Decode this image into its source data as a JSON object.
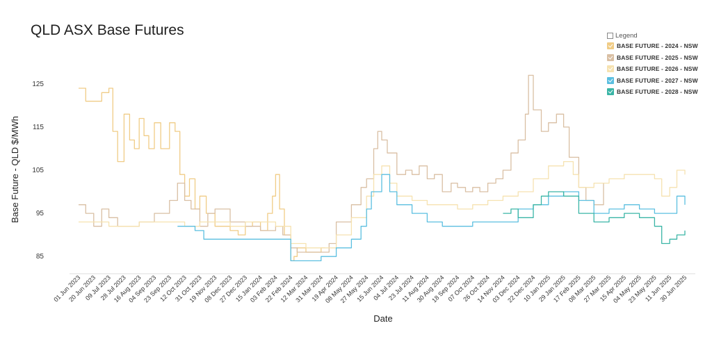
{
  "chart_data": {
    "type": "line",
    "title": "QLD ASX Base Futures",
    "xlabel": "Date",
    "ylabel": "Base Future - QLD $/MWh",
    "ylim": [
      81,
      129
    ],
    "yticks": [
      85,
      95,
      105,
      115,
      125
    ],
    "xlim": [
      "2023-06-01",
      "2025-06-30"
    ],
    "xticks": [
      "01 Jun 2023",
      "20 Jun 2023",
      "09 Jul 2023",
      "28 Jul 2023",
      "16 Aug 2023",
      "04 Sep 2023",
      "23 Sep 2023",
      "12 Oct 2023",
      "31 Oct 2023",
      "19 Nov 2023",
      "08 Dec 2023",
      "27 Dec 2023",
      "15 Jan 2024",
      "03 Feb 2024",
      "22 Feb 2024",
      "12 Mar 2024",
      "31 Mar 2024",
      "19 Apr 2024",
      "08 May 2024",
      "27 May 2024",
      "15 Jun 2024",
      "04 Jul 2024",
      "23 Jul 2024",
      "11 Aug 2024",
      "30 Aug 2024",
      "18 Sep 2024",
      "07 Oct 2024",
      "26 Oct 2024",
      "14 Nov 2024",
      "03 Dec 2024",
      "22 Dec 2024",
      "10 Jan 2025",
      "29 Jan 2025",
      "17 Feb 2025",
      "08 Mar 2025",
      "27 Mar 2025",
      "15 Apr 2025",
      "04 May 2025",
      "23 May 2025",
      "11 Jun 2025",
      "30 Jun 2025"
    ],
    "grid": false,
    "legend": {
      "title": "Legend",
      "position": "top-right"
    },
    "series": [
      {
        "name": "BASE FUTURE - 2024 - NSW",
        "color": "#f0cc86",
        "x": [
          "2023-06-01",
          "2023-06-10",
          "2023-06-20",
          "2023-06-30",
          "2023-07-09",
          "2023-07-14",
          "2023-07-20",
          "2023-07-28",
          "2023-08-04",
          "2023-08-10",
          "2023-08-16",
          "2023-08-22",
          "2023-08-28",
          "2023-09-04",
          "2023-09-12",
          "2023-09-23",
          "2023-09-30",
          "2023-10-06",
          "2023-10-12",
          "2023-10-18",
          "2023-10-25",
          "2023-10-31",
          "2023-11-08",
          "2023-11-19",
          "2023-11-28",
          "2023-12-08",
          "2023-12-18",
          "2023-12-27",
          "2024-01-05",
          "2024-01-15",
          "2024-01-24",
          "2024-01-30",
          "2024-02-03",
          "2024-02-08",
          "2024-02-14",
          "2024-02-22",
          "2024-02-26",
          "2024-03-01",
          "2024-03-12",
          "2024-03-20",
          "2024-03-31",
          "2024-04-05"
        ],
        "y": [
          124,
          121,
          121,
          123,
          124,
          114,
          107,
          118,
          112,
          110,
          117,
          113,
          110,
          116,
          110,
          116,
          114,
          104,
          99,
          103,
          96,
          99,
          95,
          92,
          92,
          91,
          90,
          92,
          93,
          91,
          95,
          99,
          104,
          96,
          90,
          84,
          85,
          87,
          86,
          86,
          87,
          87
        ]
      },
      {
        "name": "BASE FUTURE - 2025 - NSW",
        "color": "#d9bfa3",
        "x": [
          "2023-06-01",
          "2023-06-10",
          "2023-06-20",
          "2023-06-30",
          "2023-07-09",
          "2023-07-20",
          "2023-07-28",
          "2023-08-16",
          "2023-09-04",
          "2023-09-23",
          "2023-10-03",
          "2023-10-12",
          "2023-10-20",
          "2023-10-31",
          "2023-11-10",
          "2023-11-19",
          "2023-12-08",
          "2023-12-27",
          "2024-01-15",
          "2024-02-03",
          "2024-02-12",
          "2024-02-22",
          "2024-03-01",
          "2024-03-12",
          "2024-03-31",
          "2024-04-10",
          "2024-04-19",
          "2024-05-08",
          "2024-05-20",
          "2024-05-27",
          "2024-06-05",
          "2024-06-10",
          "2024-06-15",
          "2024-06-22",
          "2024-07-04",
          "2024-07-15",
          "2024-07-23",
          "2024-08-01",
          "2024-08-11",
          "2024-08-20",
          "2024-08-30",
          "2024-09-10",
          "2024-09-18",
          "2024-09-28",
          "2024-10-07",
          "2024-10-16",
          "2024-10-26",
          "2024-11-05",
          "2024-11-14",
          "2024-11-24",
          "2024-12-03",
          "2024-12-12",
          "2024-12-16",
          "2024-12-22",
          "2025-01-01",
          "2025-01-10",
          "2025-01-20",
          "2025-01-29",
          "2025-02-05",
          "2025-02-17",
          "2025-02-26",
          "2025-03-08",
          "2025-03-15",
          "2025-03-20"
        ],
        "y": [
          97,
          95,
          92,
          96,
          94,
          92,
          92,
          93,
          95,
          98,
          102,
          98,
          96,
          92,
          95,
          96,
          93,
          92,
          91,
          92,
          90,
          87,
          86,
          86,
          86,
          88,
          93,
          97,
          101,
          103,
          110,
          114,
          112,
          109,
          104,
          105,
          104,
          106,
          103,
          104,
          100,
          102,
          101,
          100,
          101,
          100,
          102,
          103,
          105,
          109,
          112,
          118,
          127,
          119,
          114,
          116,
          118,
          115,
          108,
          101,
          98,
          97,
          97,
          102
        ]
      },
      {
        "name": "BASE FUTURE - 2026 - NSW",
        "color": "#f6e2b0",
        "x": [
          "2023-06-01",
          "2023-06-20",
          "2023-07-09",
          "2023-07-28",
          "2023-08-16",
          "2023-09-04",
          "2023-09-23",
          "2023-10-12",
          "2023-10-31",
          "2023-11-19",
          "2023-12-08",
          "2023-12-27",
          "2024-01-15",
          "2024-02-03",
          "2024-02-22",
          "2024-03-12",
          "2024-03-31",
          "2024-04-19",
          "2024-05-08",
          "2024-05-27",
          "2024-06-05",
          "2024-06-15",
          "2024-06-25",
          "2024-07-04",
          "2024-07-23",
          "2024-08-11",
          "2024-08-30",
          "2024-09-18",
          "2024-10-07",
          "2024-10-26",
          "2024-11-14",
          "2024-12-03",
          "2024-12-22",
          "2025-01-10",
          "2025-01-29",
          "2025-02-10",
          "2025-02-17",
          "2025-03-08",
          "2025-03-27",
          "2025-04-15",
          "2025-05-04",
          "2025-05-23",
          "2025-06-01",
          "2025-06-11",
          "2025-06-20",
          "2025-06-30"
        ],
        "y": [
          93,
          93,
          92,
          92,
          93,
          93,
          93,
          92,
          93,
          93,
          92,
          93,
          93,
          92,
          88,
          87,
          87,
          90,
          94,
          99,
          104,
          106,
          102,
          99,
          98,
          97,
          97,
          96,
          97,
          98,
          99,
          100,
          103,
          106,
          107,
          104,
          101,
          102,
          103,
          104,
          104,
          103,
          99,
          101,
          105,
          104
        ]
      },
      {
        "name": "BASE FUTURE - 2027 - NSW",
        "color": "#5bbfe0",
        "x": [
          "2023-10-03",
          "2023-10-25",
          "2023-11-05",
          "2023-12-08",
          "2024-01-15",
          "2024-02-06",
          "2024-02-22",
          "2024-03-12",
          "2024-03-31",
          "2024-04-19",
          "2024-05-08",
          "2024-05-20",
          "2024-05-27",
          "2024-06-02",
          "2024-06-15",
          "2024-06-25",
          "2024-07-04",
          "2024-07-23",
          "2024-08-11",
          "2024-08-30",
          "2024-09-18",
          "2024-10-07",
          "2024-10-26",
          "2024-11-14",
          "2024-12-03",
          "2024-12-22",
          "2025-01-10",
          "2025-01-29",
          "2025-02-17",
          "2025-03-08",
          "2025-03-27",
          "2025-04-15",
          "2025-05-04",
          "2025-05-23",
          "2025-06-05",
          "2025-06-15",
          "2025-06-20",
          "2025-06-30"
        ],
        "y": [
          92,
          91,
          89,
          89,
          89,
          89,
          84,
          84,
          85,
          87,
          89,
          92,
          96,
          100,
          104,
          100,
          97,
          95,
          93,
          92,
          92,
          93,
          93,
          93,
          96,
          97,
          99,
          100,
          98,
          95,
          96,
          97,
          96,
          95,
          95,
          95,
          99,
          97
        ]
      },
      {
        "name": "BASE FUTURE - 2028 - NSW",
        "color": "#3ab5a6",
        "x": [
          "2024-11-14",
          "2024-11-24",
          "2024-12-03",
          "2024-12-22",
          "2025-01-01",
          "2025-01-10",
          "2025-01-29",
          "2025-02-17",
          "2025-03-08",
          "2025-03-27",
          "2025-04-15",
          "2025-05-04",
          "2025-05-23",
          "2025-06-01",
          "2025-06-11",
          "2025-06-20",
          "2025-06-30"
        ],
        "y": [
          95,
          96,
          94,
          97,
          99,
          100,
          99,
          95,
          93,
          94,
          95,
          94,
          92,
          88,
          89,
          90,
          91
        ]
      }
    ]
  }
}
